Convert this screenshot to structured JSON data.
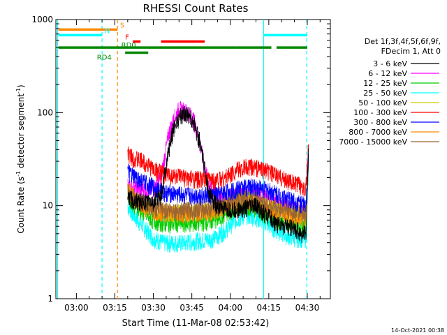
{
  "chart_data": {
    "type": "line",
    "title": "RHESSI Count Rates",
    "xlabel": "Start Time (11-Mar-08 02:53:42)",
    "ylabel": "Count Rate (s⁻¹ detector segment⁻¹)",
    "ylabel_main": "Count Rate (s",
    "ylabel_mid": " detector segment",
    "ylabel_end": ")",
    "ylabel_sup": "-1",
    "y_scale": "log",
    "ylim": [
      1,
      1000
    ],
    "xlim_minutes": [
      -8,
      99
    ],
    "x_ticks": [
      {
        "label": "03:00",
        "min": 0
      },
      {
        "label": "03:15",
        "min": 15
      },
      {
        "label": "03:30",
        "min": 30
      },
      {
        "label": "03:45",
        "min": 45
      },
      {
        "label": "04:00",
        "min": 60
      },
      {
        "label": "04:15",
        "min": 75
      },
      {
        "label": "04:30",
        "min": 90
      }
    ],
    "y_ticks": [
      {
        "label": "1",
        "value": 1
      },
      {
        "label": "10",
        "value": 10
      },
      {
        "label": "100",
        "value": 100
      },
      {
        "label": "1000",
        "value": 1000
      }
    ],
    "legend_header": [
      "Det 1f,3f,4f,5f,6f,9f,",
      "FDecim 1, Att 0"
    ],
    "series": [
      {
        "name": "3 - 6 keV",
        "color": "#000000",
        "points": [
          [
            20,
            12
          ],
          [
            25,
            11
          ],
          [
            30,
            11
          ],
          [
            33,
            13
          ],
          [
            36,
            40
          ],
          [
            38,
            70
          ],
          [
            40,
            90
          ],
          [
            42,
            100
          ],
          [
            44,
            95
          ],
          [
            46,
            75
          ],
          [
            48,
            50
          ],
          [
            50,
            25
          ],
          [
            52,
            13
          ],
          [
            55,
            10
          ],
          [
            58,
            9
          ],
          [
            62,
            9
          ],
          [
            66,
            9.5
          ],
          [
            70,
            10
          ],
          [
            74,
            8
          ],
          [
            78,
            6.5
          ],
          [
            82,
            6
          ],
          [
            86,
            5.5
          ],
          [
            88,
            5
          ],
          [
            89.5,
            5
          ],
          [
            90.5,
            40
          ]
        ]
      },
      {
        "name": "6 - 12 keV",
        "color": "#ff00ff",
        "points": [
          [
            20,
            16
          ],
          [
            25,
            15
          ],
          [
            30,
            15
          ],
          [
            33,
            20
          ],
          [
            36,
            60
          ],
          [
            38,
            85
          ],
          [
            40,
            110
          ],
          [
            42,
            105
          ],
          [
            44,
            100
          ],
          [
            46,
            80
          ],
          [
            48,
            50
          ],
          [
            50,
            25
          ],
          [
            52,
            16
          ],
          [
            55,
            13
          ],
          [
            58,
            12
          ],
          [
            62,
            13
          ],
          [
            66,
            14
          ],
          [
            70,
            14
          ],
          [
            74,
            12
          ],
          [
            78,
            11
          ],
          [
            82,
            10
          ],
          [
            86,
            9.5
          ],
          [
            89.5,
            9
          ],
          [
            90.5,
            45
          ]
        ]
      },
      {
        "name": "12 - 25 keV",
        "color": "#00cc00",
        "points": [
          [
            20,
            13
          ],
          [
            23,
            10
          ],
          [
            26,
            8.5
          ],
          [
            30,
            7
          ],
          [
            34,
            6.5
          ],
          [
            38,
            6.5
          ],
          [
            42,
            6.5
          ],
          [
            46,
            6.5
          ],
          [
            50,
            6.8
          ],
          [
            54,
            7
          ],
          [
            58,
            8
          ],
          [
            62,
            9.5
          ],
          [
            66,
            10
          ],
          [
            70,
            9.5
          ],
          [
            74,
            8
          ],
          [
            78,
            7
          ],
          [
            82,
            6.5
          ],
          [
            86,
            6
          ],
          [
            89.5,
            6
          ],
          [
            90.5,
            30
          ]
        ]
      },
      {
        "name": "25 - 50 keV",
        "color": "#00ffff",
        "points": [
          [
            20,
            10
          ],
          [
            23,
            7.5
          ],
          [
            26,
            6
          ],
          [
            30,
            4.5
          ],
          [
            34,
            4
          ],
          [
            38,
            4
          ],
          [
            42,
            4
          ],
          [
            46,
            4.2
          ],
          [
            50,
            4.3
          ],
          [
            54,
            4.5
          ],
          [
            58,
            5.5
          ],
          [
            62,
            7
          ],
          [
            66,
            8
          ],
          [
            70,
            7.5
          ],
          [
            74,
            6.5
          ],
          [
            78,
            5.5
          ],
          [
            82,
            4.8
          ],
          [
            86,
            4.5
          ],
          [
            89.5,
            4.5
          ],
          [
            90.5,
            25
          ]
        ]
      },
      {
        "name": "50 - 100 keV",
        "color": "#cccc00",
        "points": [
          [
            20,
            14
          ],
          [
            23,
            11.5
          ],
          [
            26,
            10
          ],
          [
            30,
            9
          ],
          [
            34,
            8.5
          ],
          [
            38,
            8.5
          ],
          [
            42,
            8.5
          ],
          [
            46,
            8.6
          ],
          [
            50,
            8.8
          ],
          [
            54,
            9
          ],
          [
            58,
            10
          ],
          [
            62,
            11.5
          ],
          [
            66,
            12
          ],
          [
            70,
            11.5
          ],
          [
            74,
            10
          ],
          [
            78,
            9
          ],
          [
            82,
            8.5
          ],
          [
            86,
            8
          ],
          [
            89.5,
            8
          ],
          [
            90.5,
            32
          ]
        ]
      },
      {
        "name": "100 - 300 keV",
        "color": "#ff0000",
        "points": [
          [
            20,
            36
          ],
          [
            23,
            32
          ],
          [
            26,
            30
          ],
          [
            30,
            25
          ],
          [
            34,
            22
          ],
          [
            38,
            21
          ],
          [
            42,
            20
          ],
          [
            46,
            19.5
          ],
          [
            50,
            19
          ],
          [
            54,
            19
          ],
          [
            58,
            20
          ],
          [
            62,
            24
          ],
          [
            66,
            26
          ],
          [
            70,
            26
          ],
          [
            74,
            24
          ],
          [
            78,
            21
          ],
          [
            82,
            19
          ],
          [
            86,
            17
          ],
          [
            89.5,
            16
          ],
          [
            90.5,
            45
          ]
        ]
      },
      {
        "name": "300 - 800 keV",
        "color": "#0000ff",
        "points": [
          [
            20,
            23
          ],
          [
            23,
            20
          ],
          [
            26,
            18
          ],
          [
            30,
            16
          ],
          [
            34,
            14
          ],
          [
            38,
            13.5
          ],
          [
            42,
            13
          ],
          [
            46,
            13
          ],
          [
            50,
            13
          ],
          [
            54,
            13
          ],
          [
            58,
            14
          ],
          [
            62,
            15
          ],
          [
            66,
            16
          ],
          [
            70,
            16
          ],
          [
            74,
            15
          ],
          [
            78,
            13.5
          ],
          [
            82,
            12
          ],
          [
            86,
            11
          ],
          [
            89.5,
            10
          ],
          [
            90.5,
            38
          ]
        ]
      },
      {
        "name": "800 - 7000 keV",
        "color": "#ff8800",
        "points": [
          [
            20,
            15
          ],
          [
            23,
            12
          ],
          [
            26,
            10
          ],
          [
            30,
            9
          ],
          [
            34,
            8.5
          ],
          [
            38,
            8.3
          ],
          [
            42,
            8.2
          ],
          [
            46,
            8.3
          ],
          [
            50,
            8.5
          ],
          [
            54,
            8.8
          ],
          [
            58,
            10
          ],
          [
            62,
            11
          ],
          [
            66,
            11.5
          ],
          [
            70,
            11
          ],
          [
            74,
            9.5
          ],
          [
            78,
            8.5
          ],
          [
            82,
            8
          ],
          [
            86,
            7.5
          ],
          [
            89.5,
            7.5
          ],
          [
            90.5,
            30
          ]
        ]
      },
      {
        "name": "7000 - 15000 keV",
        "color": "#996633",
        "points": [
          [
            20,
            15
          ],
          [
            23,
            12
          ],
          [
            26,
            10.5
          ],
          [
            30,
            9.5
          ],
          [
            34,
            9
          ],
          [
            38,
            9
          ],
          [
            42,
            9
          ],
          [
            46,
            9.2
          ],
          [
            50,
            9.4
          ],
          [
            54,
            9.6
          ],
          [
            58,
            10.5
          ],
          [
            62,
            12
          ],
          [
            66,
            12.5
          ],
          [
            70,
            12
          ],
          [
            74,
            10.5
          ],
          [
            78,
            9.5
          ],
          [
            82,
            9
          ],
          [
            86,
            8.5
          ],
          [
            89.5,
            8.5
          ],
          [
            90.5,
            30
          ]
        ]
      }
    ],
    "vertical_lines": [
      {
        "min": -7.3,
        "color": "#00ffff",
        "style": "solid"
      },
      {
        "min": 10,
        "color": "#00ffff",
        "style": "dashed"
      },
      {
        "min": 16,
        "color": "#ff8800",
        "style": "dashed"
      },
      {
        "min": 73,
        "color": "#00ffff",
        "style": "solid"
      },
      {
        "min": 89.8,
        "color": "#00ffff",
        "style": "dashed"
      }
    ],
    "state_bars": [
      {
        "name": "S",
        "color": "#ff8800",
        "y": 780,
        "segments": [
          [
            -7,
            16
          ]
        ],
        "label_at": 17
      },
      {
        "name": "N",
        "color": "#00ffff",
        "y": 680,
        "segments": [
          [
            -7,
            10
          ],
          [
            73,
            90
          ]
        ],
        "label_at": 11
      },
      {
        "name": "F",
        "color": "#ff0000",
        "y": 580,
        "segments": [
          [
            22,
            25
          ],
          [
            33,
            50
          ]
        ],
        "label_at": 19
      },
      {
        "name": "RD0",
        "color": "#008800",
        "y": 500,
        "segments": [
          [
            -7,
            62
          ],
          [
            62,
            76
          ],
          [
            78,
            90
          ]
        ],
        "label_at": 17.5
      },
      {
        "name": "RD4",
        "color": "#008800",
        "y": 440,
        "segments": [
          [
            19,
            28
          ]
        ],
        "label_at": 8
      }
    ],
    "footer_date": "14-Oct-2021 00:38"
  }
}
